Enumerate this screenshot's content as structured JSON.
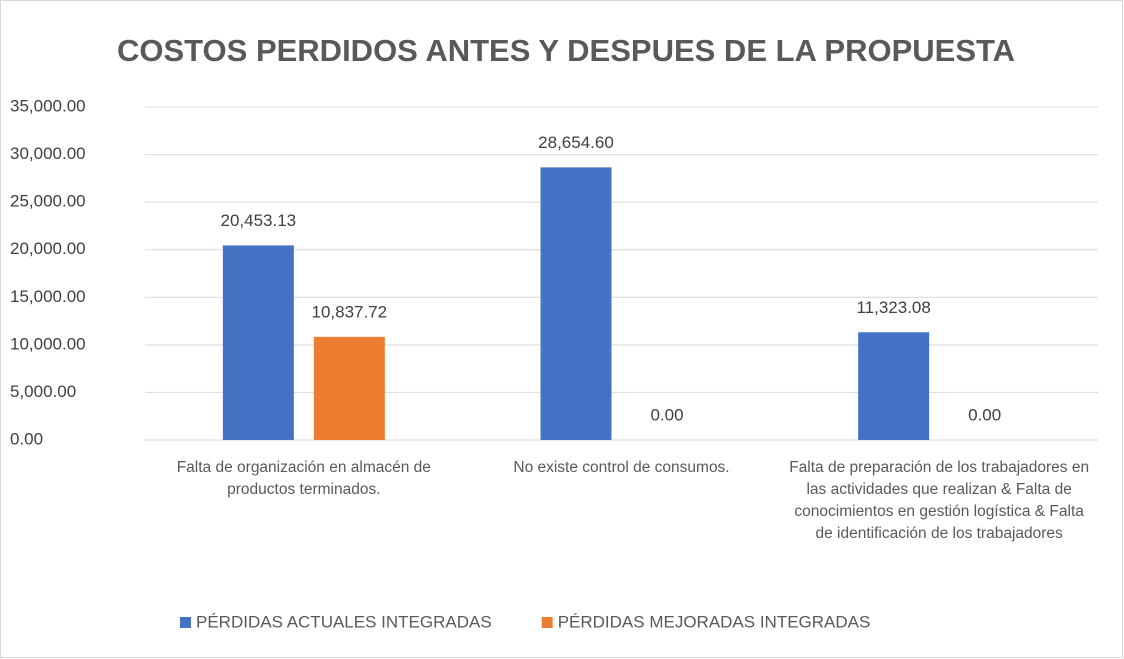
{
  "chart_data": {
    "type": "bar",
    "title": "COSTOS PERDIDOS ANTES Y DESPUES DE LA PROPUESTA",
    "categories": [
      "Falta de organización en almacén de productos terminados.",
      "No existe control de consumos.",
      "Falta de preparación de los trabajadores en las actividades que realizan & Falta de conocimientos en gestión logística & Falta de identificación de los trabajadores"
    ],
    "series": [
      {
        "name": "PÉRDIDAS ACTUALES INTEGRADAS",
        "color": "#4472c4",
        "values": [
          20453.13,
          28654.6,
          11323.08
        ],
        "value_labels": [
          "20,453.13",
          "28,654.60",
          "11,323.08"
        ]
      },
      {
        "name": "PÉRDIDAS MEJORADAS INTEGRADAS",
        "color": "#ed7d31",
        "values": [
          10837.72,
          0,
          0
        ],
        "value_labels": [
          "10,837.72",
          "0.00",
          "0.00"
        ]
      }
    ],
    "ylim": [
      0,
      35000
    ],
    "yticks": [
      {
        "value": 0,
        "label": "0.00"
      },
      {
        "value": 5000,
        "label": "5,000.00"
      },
      {
        "value": 10000,
        "label": "10,000.00"
      },
      {
        "value": 15000,
        "label": "15,000.00"
      },
      {
        "value": 20000,
        "label": "20,000.00"
      },
      {
        "value": 25000,
        "label": "25,000.00"
      },
      {
        "value": 30000,
        "label": "30,000.00"
      },
      {
        "value": 35000,
        "label": "35,000.00"
      }
    ],
    "grid": true,
    "legend": "bottom"
  }
}
